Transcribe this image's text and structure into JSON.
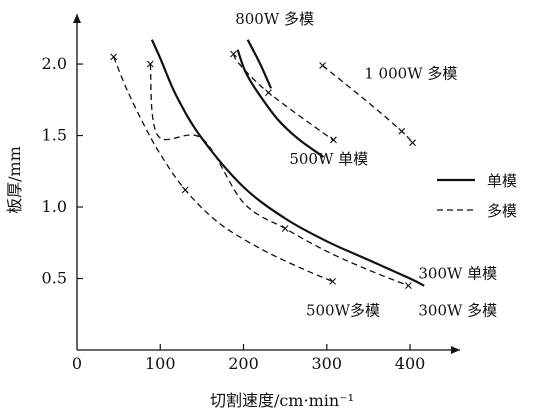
{
  "chart_data": {
    "type": "line",
    "xlabel": "切割速度/cm·min⁻¹",
    "ylabel": "板厚/mm",
    "xlim": [
      0,
      460
    ],
    "ylim": [
      0,
      2.35
    ],
    "xticks": [
      "0",
      "100",
      "200",
      "300",
      "400"
    ],
    "yticks": [
      "0.5",
      "1.0",
      "1.5",
      "2.0"
    ],
    "legend": {
      "position": "right",
      "entries": [
        {
          "label": "单模",
          "style": "solid"
        },
        {
          "label": "多模",
          "style": "dashed"
        }
      ]
    },
    "annotations": [
      {
        "text": "800W 多模",
        "x": 190,
        "y": 2.28
      },
      {
        "text": "1 000W 多模",
        "x": 345,
        "y": 1.9
      },
      {
        "text": "500W 单模",
        "x": 255,
        "y": 1.3
      },
      {
        "text": "300W 单模",
        "x": 410,
        "y": 0.5
      },
      {
        "text": "500W多模",
        "x": 275,
        "y": 0.24
      },
      {
        "text": "300W 多模",
        "x": 410,
        "y": 0.24
      }
    ],
    "series": [
      {
        "style": "solid",
        "points": [
          [
            90,
            2.17
          ],
          [
            100,
            2.04
          ],
          [
            120,
            1.77
          ],
          [
            150,
            1.48
          ],
          [
            200,
            1.14
          ],
          [
            250,
            0.92
          ],
          [
            300,
            0.76
          ],
          [
            350,
            0.63
          ],
          [
            400,
            0.5
          ],
          [
            417,
            0.45
          ]
        ]
      },
      {
        "style": "dashed",
        "markers": true,
        "points": [
          [
            88,
            2.0
          ],
          [
            97,
            1.5
          ],
          [
            150,
            1.48
          ],
          [
            200,
            1.03
          ],
          [
            250,
            0.85
          ],
          [
            300,
            0.69
          ],
          [
            350,
            0.56
          ],
          [
            398,
            0.45
          ]
        ]
      },
      {
        "style": "dashed",
        "markers": true,
        "points": [
          [
            44,
            2.05
          ],
          [
            60,
            1.82
          ],
          [
            80,
            1.58
          ],
          [
            100,
            1.37
          ],
          [
            130,
            1.12
          ],
          [
            170,
            0.89
          ],
          [
            220,
            0.71
          ],
          [
            270,
            0.57
          ],
          [
            307,
            0.48
          ]
        ]
      },
      {
        "style": "solid",
        "points": [
          [
            193,
            2.1
          ],
          [
            202,
            1.95
          ],
          [
            215,
            1.82
          ],
          [
            240,
            1.62
          ],
          [
            265,
            1.48
          ],
          [
            296,
            1.35
          ]
        ]
      },
      {
        "style": "solid",
        "points": [
          [
            205,
            2.17
          ],
          [
            220,
            2.0
          ],
          [
            233,
            1.83
          ]
        ]
      },
      {
        "style": "dashed",
        "markers": true,
        "points": [
          [
            188,
            2.07
          ],
          [
            195,
            2.0
          ],
          [
            230,
            1.8
          ],
          [
            300,
            1.5
          ],
          [
            308,
            1.47
          ]
        ]
      },
      {
        "style": "dashed",
        "markers": true,
        "points": [
          [
            295,
            1.99
          ],
          [
            350,
            1.73
          ],
          [
            390,
            1.53
          ],
          [
            403,
            1.45
          ]
        ]
      }
    ]
  }
}
